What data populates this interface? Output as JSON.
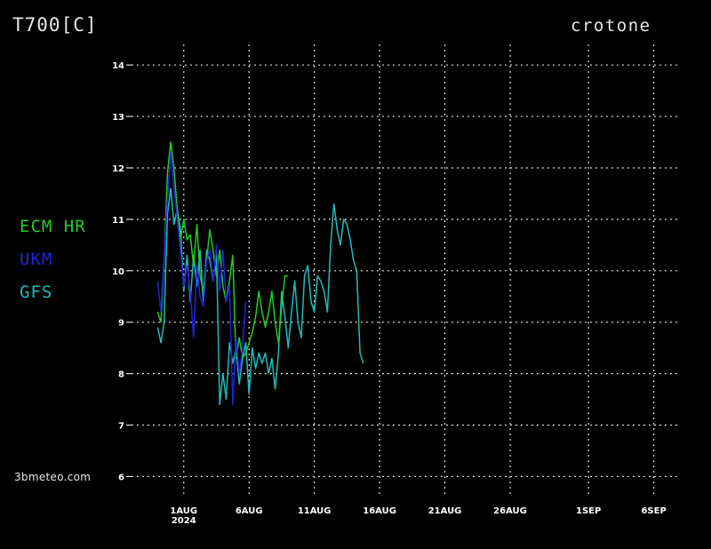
{
  "header": {
    "title": "T700[C]",
    "location": "crotone"
  },
  "watermark": "3bmeteo.com",
  "colors": {
    "background": "#000000",
    "grid": "#dddddd",
    "text": "#ffffff"
  },
  "chart_data": {
    "type": "line",
    "title": "T700[C]",
    "subtitle": "crotone",
    "xlabel": "",
    "ylabel": "",
    "x_unit": "days (date axis)",
    "xlim": [
      "2024-07-28T00:00",
      "2024-09-08T00:00"
    ],
    "ylim": [
      5.8,
      14.4
    ],
    "y_ticks": [
      6,
      7,
      8,
      9,
      10,
      11,
      12,
      13,
      14
    ],
    "x_ticks": [
      {
        "date": "2024-08-01",
        "label": "1AUG",
        "sublabel": "2024"
      },
      {
        "date": "2024-08-06",
        "label": "6AUG",
        "sublabel": ""
      },
      {
        "date": "2024-08-11",
        "label": "11AUG",
        "sublabel": ""
      },
      {
        "date": "2024-08-16",
        "label": "16AUG",
        "sublabel": ""
      },
      {
        "date": "2024-08-21",
        "label": "21AUG",
        "sublabel": ""
      },
      {
        "date": "2024-08-26",
        "label": "26AUG",
        "sublabel": ""
      },
      {
        "date": "2024-09-01",
        "label": "1SEP",
        "sublabel": ""
      },
      {
        "date": "2024-09-06",
        "label": "6SEP",
        "sublabel": ""
      }
    ],
    "grid": true,
    "legend_placement": "left",
    "series": [
      {
        "name": "ECM HR",
        "color": "#22cc22",
        "points": [
          [
            "2024-07-30T00:00",
            9.2
          ],
          [
            "2024-07-30T06:00",
            9.0
          ],
          [
            "2024-07-30T12:00",
            10.2
          ],
          [
            "2024-07-30T18:00",
            11.9
          ],
          [
            "2024-07-31T00:00",
            12.5
          ],
          [
            "2024-07-31T06:00",
            12.0
          ],
          [
            "2024-07-31T12:00",
            11.2
          ],
          [
            "2024-07-31T18:00",
            10.6
          ],
          [
            "2024-08-01T00:00",
            11.0
          ],
          [
            "2024-08-01T06:00",
            10.6
          ],
          [
            "2024-08-01T12:00",
            10.7
          ],
          [
            "2024-08-01T18:00",
            10.1
          ],
          [
            "2024-08-02T00:00",
            10.9
          ],
          [
            "2024-08-02T06:00",
            9.9
          ],
          [
            "2024-08-02T12:00",
            9.6
          ],
          [
            "2024-08-02T18:00",
            10.2
          ],
          [
            "2024-08-03T00:00",
            10.8
          ],
          [
            "2024-08-03T06:00",
            10.4
          ],
          [
            "2024-08-03T12:00",
            9.9
          ],
          [
            "2024-08-03T18:00",
            10.4
          ],
          [
            "2024-08-04T00:00",
            9.7
          ],
          [
            "2024-08-04T06:00",
            9.4
          ],
          [
            "2024-08-04T12:00",
            9.8
          ],
          [
            "2024-08-04T18:00",
            10.3
          ],
          [
            "2024-08-05T00:00",
            8.3
          ],
          [
            "2024-08-05T06:00",
            8.7
          ],
          [
            "2024-08-05T12:00",
            8.3
          ],
          [
            "2024-08-05T18:00",
            8.4
          ],
          [
            "2024-08-06T00:00",
            8.6
          ],
          [
            "2024-08-06T06:00",
            8.8
          ],
          [
            "2024-08-06T12:00",
            9.1
          ],
          [
            "2024-08-06T18:00",
            9.6
          ],
          [
            "2024-08-07T00:00",
            9.2
          ],
          [
            "2024-08-07T06:00",
            8.9
          ],
          [
            "2024-08-07T12:00",
            9.2
          ],
          [
            "2024-08-07T18:00",
            9.6
          ],
          [
            "2024-08-08T00:00",
            9.0
          ],
          [
            "2024-08-08T06:00",
            8.6
          ],
          [
            "2024-08-08T12:00",
            9.3
          ],
          [
            "2024-08-08T18:00",
            9.9
          ],
          [
            "2024-08-09T00:00",
            9.9
          ]
        ]
      },
      {
        "name": "UKM",
        "color": "#2222dd",
        "points": [
          [
            "2024-07-30T00:00",
            9.8
          ],
          [
            "2024-07-30T06:00",
            9.2
          ],
          [
            "2024-07-30T12:00",
            10.3
          ],
          [
            "2024-07-30T18:00",
            11.4
          ],
          [
            "2024-07-31T00:00",
            12.3
          ],
          [
            "2024-07-31T06:00",
            11.6
          ],
          [
            "2024-07-31T12:00",
            11.0
          ],
          [
            "2024-07-31T18:00",
            10.4
          ],
          [
            "2024-08-01T00:00",
            9.7
          ],
          [
            "2024-08-01T06:00",
            10.1
          ],
          [
            "2024-08-01T12:00",
            9.6
          ],
          [
            "2024-08-01T18:00",
            8.7
          ],
          [
            "2024-08-02T00:00",
            10.1
          ],
          [
            "2024-08-02T06:00",
            9.5
          ],
          [
            "2024-08-02T12:00",
            9.3
          ],
          [
            "2024-08-02T18:00",
            10.2
          ],
          [
            "2024-08-03T00:00",
            10.4
          ],
          [
            "2024-08-03T06:00",
            9.8
          ],
          [
            "2024-08-03T12:00",
            10.5
          ],
          [
            "2024-08-03T18:00",
            9.6
          ],
          [
            "2024-08-04T00:00",
            10.4
          ],
          [
            "2024-08-04T06:00",
            9.4
          ],
          [
            "2024-08-04T12:00",
            9.7
          ],
          [
            "2024-08-04T18:00",
            7.4
          ],
          [
            "2024-08-05T00:00",
            8.7
          ],
          [
            "2024-08-05T06:00",
            8.0
          ],
          [
            "2024-08-05T12:00",
            8.5
          ],
          [
            "2024-08-05T18:00",
            9.4
          ]
        ]
      },
      {
        "name": "GFS",
        "color": "#22bbbb",
        "points": [
          [
            "2024-07-30T00:00",
            8.9
          ],
          [
            "2024-07-30T06:00",
            8.6
          ],
          [
            "2024-07-30T12:00",
            9.0
          ],
          [
            "2024-07-30T18:00",
            11.1
          ],
          [
            "2024-07-31T00:00",
            11.6
          ],
          [
            "2024-07-31T06:00",
            10.9
          ],
          [
            "2024-07-31T12:00",
            11.2
          ],
          [
            "2024-07-31T18:00",
            10.8
          ],
          [
            "2024-08-01T00:00",
            9.6
          ],
          [
            "2024-08-01T06:00",
            10.3
          ],
          [
            "2024-08-01T12:00",
            9.4
          ],
          [
            "2024-08-01T18:00",
            10.3
          ],
          [
            "2024-08-02T00:00",
            9.7
          ],
          [
            "2024-08-02T06:00",
            10.4
          ],
          [
            "2024-08-02T12:00",
            9.4
          ],
          [
            "2024-08-02T18:00",
            10.4
          ],
          [
            "2024-08-03T00:00",
            10.2
          ],
          [
            "2024-08-03T06:00",
            9.8
          ],
          [
            "2024-08-03T12:00",
            10.4
          ],
          [
            "2024-08-03T18:00",
            7.4
          ],
          [
            "2024-08-04T00:00",
            8.0
          ],
          [
            "2024-08-04T06:00",
            7.5
          ],
          [
            "2024-08-04T12:00",
            8.6
          ],
          [
            "2024-08-04T18:00",
            8.2
          ],
          [
            "2024-08-05T00:00",
            8.5
          ],
          [
            "2024-08-05T06:00",
            7.8
          ],
          [
            "2024-08-05T12:00",
            8.3
          ],
          [
            "2024-08-05T18:00",
            8.6
          ],
          [
            "2024-08-06T00:00",
            7.6
          ],
          [
            "2024-08-06T06:00",
            8.5
          ],
          [
            "2024-08-06T12:00",
            8.1
          ],
          [
            "2024-08-06T18:00",
            8.4
          ],
          [
            "2024-08-07T00:00",
            8.2
          ],
          [
            "2024-08-07T06:00",
            8.4
          ],
          [
            "2024-08-07T12:00",
            8.0
          ],
          [
            "2024-08-07T18:00",
            8.3
          ],
          [
            "2024-08-08T00:00",
            7.7
          ],
          [
            "2024-08-08T06:00",
            8.4
          ],
          [
            "2024-08-08T12:00",
            9.6
          ],
          [
            "2024-08-08T18:00",
            9.1
          ],
          [
            "2024-08-09T00:00",
            8.5
          ],
          [
            "2024-08-09T06:00",
            9.2
          ],
          [
            "2024-08-09T12:00",
            9.8
          ],
          [
            "2024-08-09T18:00",
            9.0
          ],
          [
            "2024-08-10T00:00",
            8.7
          ],
          [
            "2024-08-10T06:00",
            9.9
          ],
          [
            "2024-08-10T12:00",
            10.1
          ],
          [
            "2024-08-10T18:00",
            9.4
          ],
          [
            "2024-08-11T00:00",
            9.2
          ],
          [
            "2024-08-11T06:00",
            9.9
          ],
          [
            "2024-08-11T12:00",
            9.8
          ],
          [
            "2024-08-11T18:00",
            9.6
          ],
          [
            "2024-08-12T00:00",
            9.2
          ],
          [
            "2024-08-12T06:00",
            10.5
          ],
          [
            "2024-08-12T12:00",
            11.3
          ],
          [
            "2024-08-12T18:00",
            10.8
          ],
          [
            "2024-08-13T00:00",
            10.5
          ],
          [
            "2024-08-13T06:00",
            11.0
          ],
          [
            "2024-08-13T12:00",
            10.9
          ],
          [
            "2024-08-13T18:00",
            10.6
          ],
          [
            "2024-08-14T00:00",
            10.2
          ],
          [
            "2024-08-14T06:00",
            10.0
          ],
          [
            "2024-08-14T12:00",
            8.4
          ],
          [
            "2024-08-14T18:00",
            8.2
          ]
        ]
      }
    ]
  }
}
